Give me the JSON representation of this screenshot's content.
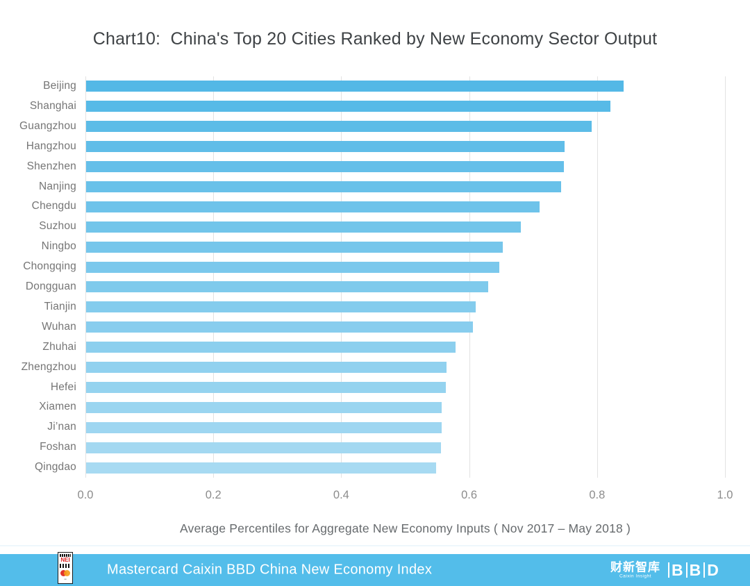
{
  "title": "Chart10:  China's Top 20 Cities Ranked by New Economy Sector Output",
  "chart_data": {
    "type": "bar",
    "orientation": "horizontal",
    "title": "Chart10:  China's Top 20 Cities Ranked by New Economy Sector Output",
    "categories": [
      "Beijing",
      "Shanghai",
      "Guangzhou",
      "Hangzhou",
      "Shenzhen",
      "Nanjing",
      "Chengdu",
      "Suzhou",
      "Ningbo",
      "Chongqing",
      "Dongguan",
      "Tianjin",
      "Wuhan",
      "Zhuhai",
      "Zhengzhou",
      "Hefei",
      "Xiamen",
      "Ji’nan",
      "Foshan",
      "Qingdao"
    ],
    "values": [
      0.84,
      0.82,
      0.79,
      0.748,
      0.747,
      0.743,
      0.709,
      0.68,
      0.651,
      0.646,
      0.629,
      0.609,
      0.605,
      0.578,
      0.563,
      0.562,
      0.556,
      0.556,
      0.555,
      0.547
    ],
    "xlabel": "Average Percentiles for Aggregate New Economy Inputs ( Nov 2017 – May 2018 )",
    "ylabel": "",
    "xlim": [
      0.0,
      1.0
    ],
    "xticks": [
      "0.0",
      "0.2",
      "0.4",
      "0.6",
      "0.8",
      "1.0"
    ],
    "grid": "vertical-only",
    "legend": "none",
    "bar_color_start": "#53B8E6",
    "bar_color_end": "#A7DAF2",
    "gridline_color": "#e2e2e2",
    "label_color": "#757575"
  },
  "footer": {
    "text": "Mastercard Caixin BBD China New Economy Index",
    "bg_color": "#53BDEA",
    "nei_logo": {
      "text": "NEI"
    },
    "caixin_logo": {
      "text": "财新智库",
      "subtext": "Caixin Insight"
    },
    "bbd_logo": {
      "text": "BBD"
    }
  }
}
